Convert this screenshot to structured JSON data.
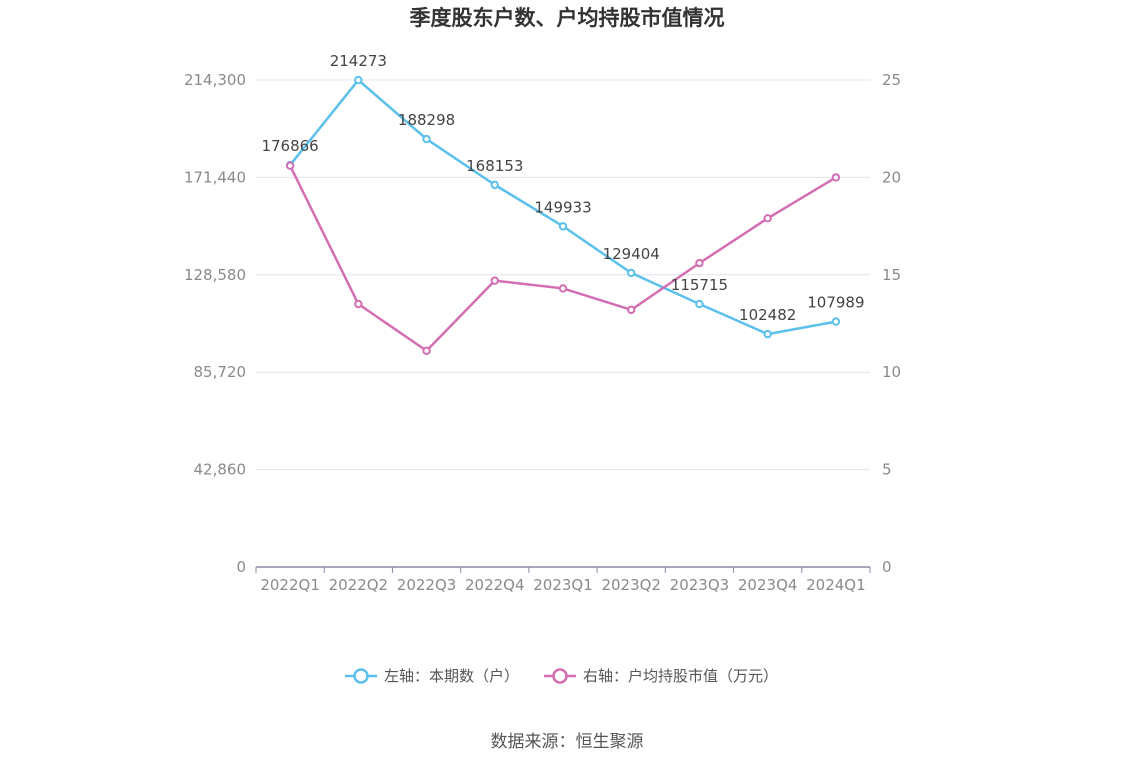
{
  "title": "季度股东户数、户均持股市值情况",
  "source": "数据来源：恒生聚源",
  "colors": {
    "left_series": "#5bc0eb",
    "right_series": "#d36eb3",
    "grid": "#e3e3ef",
    "axis": "#8a8aa8"
  },
  "chart_data": {
    "type": "line",
    "x": [
      "2022Q1",
      "2022Q2",
      "2022Q3",
      "2022Q4",
      "2023Q1",
      "2023Q2",
      "2023Q3",
      "2023Q4",
      "2024Q1"
    ],
    "y_left": {
      "ticks": [
        "0",
        "42,860",
        "85,720",
        "128,580",
        "171,440",
        "214,300"
      ],
      "range": [
        0,
        214300
      ]
    },
    "y_right": {
      "ticks": [
        "0",
        "5",
        "10",
        "15",
        "20",
        "25"
      ],
      "range": [
        0,
        25
      ]
    },
    "series": [
      {
        "name": "左轴：本期数（户）",
        "axis": "left",
        "values": [
          176866,
          214273,
          188298,
          168153,
          149933,
          129404,
          115715,
          102482,
          107989
        ],
        "labels": [
          "176866",
          "214273",
          "188298",
          "168153",
          "149933",
          "129404",
          "115715",
          "102482",
          "107989"
        ]
      },
      {
        "name": "右轴：户均持股市值（万元）",
        "axis": "right",
        "values": [
          20.6,
          13.5,
          11.1,
          14.7,
          14.3,
          13.2,
          15.6,
          17.9,
          20.0
        ]
      }
    ],
    "grid": true,
    "legend_position": "bottom-center"
  }
}
